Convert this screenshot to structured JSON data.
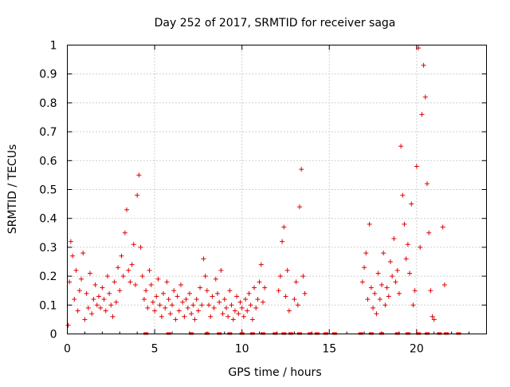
{
  "chart_data": {
    "type": "scatter",
    "title": "Day 252 of 2017, SRMTID for receiver saga",
    "xlabel": "GPS time / hours",
    "ylabel": "SRMTID / TECUs",
    "xlim": [
      0,
      24
    ],
    "ylim": [
      0,
      1
    ],
    "xticks": [
      0,
      5,
      10,
      15,
      20
    ],
    "yticks": [
      0,
      0.1,
      0.2,
      0.3,
      0.4,
      0.5,
      0.6,
      0.7,
      0.8,
      0.9,
      1
    ],
    "xtick_labels": [
      "0",
      "5",
      "10",
      "15",
      "20"
    ],
    "ytick_labels": [
      "0",
      "0.1",
      "0.2",
      "0.3",
      "0.4",
      "0.5",
      "0.6",
      "0.7",
      "0.8",
      "0.9",
      "1"
    ],
    "grid": true,
    "legend": "none",
    "marker": "plus",
    "color": "#e00000",
    "series": [
      {
        "x": [
          0.05,
          0.12,
          0.2,
          0.3,
          0.4,
          0.5,
          0.6,
          0.7,
          0.8,
          0.9,
          1.0,
          1.1,
          1.2,
          1.3,
          1.4,
          1.5,
          1.6,
          1.7,
          1.8,
          1.9,
          2.0,
          2.1,
          2.2,
          2.3,
          2.4,
          2.5,
          2.6,
          2.7,
          2.8,
          2.9,
          3.0,
          3.1,
          3.2,
          3.3,
          3.4,
          3.5,
          3.6,
          3.7,
          3.8,
          3.9,
          4.0,
          4.1,
          4.2,
          4.3,
          4.4,
          4.5,
          4.6,
          4.7,
          4.8,
          4.9,
          5.0,
          5.1,
          5.2,
          5.3,
          5.4,
          5.5,
          5.6,
          5.7,
          5.8,
          5.9,
          6.0,
          6.1,
          6.2,
          6.3,
          6.4,
          6.5,
          6.6,
          6.7,
          6.8,
          6.9,
          7.0,
          7.1,
          7.2,
          7.3,
          7.4,
          7.5,
          7.6,
          7.7,
          7.8,
          7.9,
          8.0,
          8.1,
          8.2,
          8.3,
          8.4,
          8.5,
          8.6,
          8.7,
          8.8,
          8.9,
          9.0,
          9.1,
          9.2,
          9.3,
          9.4,
          9.5,
          9.6,
          9.7,
          9.8,
          9.9,
          10.0,
          10.1,
          10.2,
          10.3,
          10.4,
          10.5,
          10.6,
          10.7,
          10.8,
          10.9,
          11.0,
          11.1,
          11.2,
          11.3,
          12.1,
          12.2,
          12.3,
          12.4,
          12.5,
          12.6,
          12.7,
          13.0,
          13.1,
          13.2,
          13.3,
          13.4,
          13.5,
          13.6,
          16.9,
          17.0,
          17.1,
          17.2,
          17.3,
          17.4,
          17.5,
          17.6,
          17.7,
          17.8,
          17.9,
          18.0,
          18.1,
          18.2,
          18.3,
          18.4,
          18.5,
          18.6,
          18.7,
          18.8,
          18.9,
          19.0,
          19.1,
          19.2,
          19.3,
          19.4,
          19.5,
          19.6,
          19.7,
          19.8,
          19.9,
          20.0,
          20.1,
          20.2,
          20.3,
          20.4,
          20.5,
          20.6,
          20.7,
          20.8,
          20.9,
          21.0,
          21.5,
          21.6
        ],
        "y": [
          0.03,
          0.18,
          0.32,
          0.27,
          0.12,
          0.22,
          0.08,
          0.15,
          0.19,
          0.28,
          0.05,
          0.14,
          0.09,
          0.21,
          0.07,
          0.12,
          0.17,
          0.1,
          0.13,
          0.09,
          0.16,
          0.12,
          0.08,
          0.2,
          0.14,
          0.1,
          0.06,
          0.18,
          0.11,
          0.23,
          0.15,
          0.27,
          0.2,
          0.35,
          0.43,
          0.22,
          0.18,
          0.24,
          0.31,
          0.17,
          0.48,
          0.55,
          0.3,
          0.2,
          0.12,
          0.15,
          0.09,
          0.22,
          0.17,
          0.11,
          0.08,
          0.13,
          0.19,
          0.1,
          0.06,
          0.14,
          0.09,
          0.18,
          0.12,
          0.07,
          0.1,
          0.15,
          0.05,
          0.13,
          0.08,
          0.17,
          0.11,
          0.06,
          0.12,
          0.09,
          0.14,
          0.07,
          0.1,
          0.05,
          0.12,
          0.08,
          0.16,
          0.1,
          0.26,
          0.2,
          0.15,
          0.1,
          0.06,
          0.13,
          0.09,
          0.19,
          0.14,
          0.11,
          0.22,
          0.07,
          0.12,
          0.09,
          0.06,
          0.15,
          0.1,
          0.05,
          0.08,
          0.13,
          0.07,
          0.11,
          0.09,
          0.06,
          0.12,
          0.08,
          0.14,
          0.1,
          0.05,
          0.16,
          0.09,
          0.12,
          0.18,
          0.24,
          0.11,
          0.16,
          0.15,
          0.2,
          0.32,
          0.37,
          0.13,
          0.22,
          0.08,
          0.12,
          0.18,
          0.1,
          0.44,
          0.57,
          0.2,
          0.14,
          0.18,
          0.23,
          0.28,
          0.12,
          0.38,
          0.16,
          0.09,
          0.14,
          0.07,
          0.21,
          0.12,
          0.17,
          0.28,
          0.1,
          0.16,
          0.13,
          0.25,
          0.2,
          0.33,
          0.18,
          0.22,
          0.14,
          0.65,
          0.48,
          0.38,
          0.26,
          0.31,
          0.21,
          0.45,
          0.1,
          0.15,
          0.58,
          0.99,
          0.3,
          0.76,
          0.93,
          0.82,
          0.52,
          0.35,
          0.15,
          0.06,
          0.05,
          0.37,
          0.17
        ]
      }
    ],
    "zero_points_x": [
      4.5,
      5.8,
      7.1,
      8.0,
      8.7,
      9.3,
      10.0,
      10.6,
      11.2,
      11.9,
      12.4,
      12.8,
      13.3,
      13.9,
      14.3,
      14.8,
      15.3,
      16.8,
      17.4,
      18.0,
      18.9,
      19.5,
      20.1,
      20.6,
      21.3,
      21.7,
      22.4
    ]
  }
}
